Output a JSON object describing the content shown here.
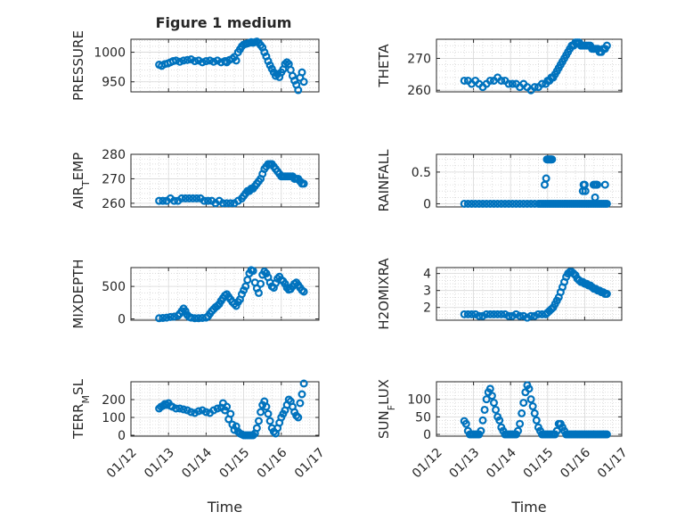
{
  "chart_data": {
    "type": "scatter",
    "title": "Figure 1 medium",
    "marker_color": "#0072BD",
    "marker": "circle",
    "xlabel": "Time",
    "x_domain": [
      "01/12",
      "01/17"
    ],
    "xticks": [
      "01/12",
      "01/13",
      "01/14",
      "01/15",
      "01/16",
      "01/17"
    ],
    "subplots": [
      {
        "name": "pressure",
        "ylabel": "PRESSURE",
        "ylabel_parts": [
          {
            "t": "PRESSURE"
          }
        ],
        "ylim": [
          933,
          1022
        ],
        "yticks": [
          950,
          1000
        ],
        "x": [
          12.75,
          12.82,
          12.9,
          12.98,
          13.05,
          13.12,
          13.2,
          13.3,
          13.4,
          13.5,
          13.6,
          13.7,
          13.8,
          13.9,
          14.0,
          14.1,
          14.2,
          14.3,
          14.4,
          14.5,
          14.55,
          14.62,
          14.7,
          14.75,
          14.8,
          14.85,
          14.9,
          14.95,
          15.0,
          15.05,
          15.1,
          15.15,
          15.2,
          15.25,
          15.3,
          15.35,
          15.4,
          15.45,
          15.5,
          15.55,
          15.6,
          15.65,
          15.7,
          15.75,
          15.8,
          15.85,
          15.9,
          15.95,
          16.0,
          16.05,
          16.1,
          16.15,
          16.2,
          16.25,
          16.3,
          16.35,
          16.4,
          16.45,
          16.5,
          16.55,
          16.6
        ],
        "y": [
          979,
          977,
          980,
          981,
          983,
          985,
          986,
          984,
          986,
          987,
          988,
          985,
          986,
          983,
          985,
          986,
          984,
          986,
          983,
          985,
          983,
          987,
          989,
          992,
          986,
          1000,
          1005,
          1010,
          1013,
          1014,
          1015,
          1016,
          1017,
          1016,
          1017,
          1018,
          1016,
          1012,
          1008,
          1000,
          993,
          985,
          978,
          972,
          966,
          960,
          963,
          958,
          966,
          971,
          980,
          983,
          980,
          970,
          960,
          952,
          945,
          936,
          957,
          966,
          950
        ]
      },
      {
        "name": "theta",
        "ylabel": "THETA",
        "ylabel_parts": [
          {
            "t": "THETA"
          }
        ],
        "ylim": [
          259.5,
          276
        ],
        "yticks": [
          260,
          270
        ],
        "x": [
          12.75,
          12.85,
          12.95,
          13.05,
          13.15,
          13.25,
          13.35,
          13.45,
          13.55,
          13.65,
          13.75,
          13.85,
          13.95,
          14.05,
          14.15,
          14.25,
          14.35,
          14.45,
          14.55,
          14.65,
          14.75,
          14.85,
          14.95,
          15.0,
          15.05,
          15.1,
          15.15,
          15.2,
          15.25,
          15.3,
          15.35,
          15.4,
          15.45,
          15.5,
          15.55,
          15.6,
          15.65,
          15.7,
          15.75,
          15.8,
          15.85,
          15.9,
          15.95,
          16.0,
          16.05,
          16.1,
          16.15,
          16.2,
          16.25,
          16.3,
          16.35,
          16.4,
          16.45,
          16.5,
          16.55,
          16.6
        ],
        "y": [
          263,
          263,
          262,
          263,
          262,
          261,
          262,
          263,
          263,
          264,
          263,
          263,
          262,
          262,
          262,
          261,
          262,
          261,
          260,
          261,
          261,
          262,
          262,
          263,
          263,
          264,
          264,
          265,
          266,
          267,
          268,
          269,
          270,
          271,
          272,
          273,
          274,
          274,
          275,
          275,
          275,
          274,
          274,
          274,
          274,
          274,
          274,
          273,
          273,
          273,
          273,
          272,
          272,
          273,
          273,
          274
        ]
      },
      {
        "name": "air_temp",
        "ylabel": "AIR_TEMP",
        "ylabel_parts": [
          {
            "t": "AIR"
          },
          {
            "t": "T",
            "sub": true
          },
          {
            "t": "EMP"
          }
        ],
        "ylim": [
          258.5,
          280
        ],
        "yticks": [
          260,
          270,
          280
        ],
        "x": [
          12.75,
          12.85,
          12.95,
          13.05,
          13.15,
          13.25,
          13.35,
          13.45,
          13.55,
          13.65,
          13.75,
          13.85,
          13.95,
          14.05,
          14.15,
          14.25,
          14.35,
          14.45,
          14.55,
          14.65,
          14.75,
          14.85,
          14.95,
          15.0,
          15.05,
          15.1,
          15.15,
          15.2,
          15.25,
          15.3,
          15.35,
          15.4,
          15.45,
          15.5,
          15.55,
          15.6,
          15.65,
          15.7,
          15.75,
          15.8,
          15.85,
          15.9,
          15.95,
          16.0,
          16.05,
          16.1,
          16.15,
          16.2,
          16.25,
          16.3,
          16.35,
          16.4,
          16.45,
          16.5,
          16.55,
          16.6
        ],
        "y": [
          261,
          261,
          261,
          262,
          261,
          261,
          262,
          262,
          262,
          262,
          262,
          262,
          261,
          261,
          261,
          260,
          261,
          260,
          260,
          260,
          260,
          261,
          262,
          263,
          264,
          265,
          265,
          266,
          266,
          267,
          268,
          269,
          270,
          272,
          274,
          275,
          276,
          276,
          276,
          275,
          274,
          273,
          272,
          271,
          271,
          271,
          271,
          271,
          271,
          271,
          270,
          270,
          270,
          269,
          268,
          268
        ]
      },
      {
        "name": "rainfall",
        "ylabel": "RAINFALL",
        "ylabel_parts": [
          {
            "t": "RAINFALL"
          }
        ],
        "ylim": [
          -0.05,
          0.78
        ],
        "yticks": [
          0,
          0.5
        ],
        "x": [
          12.75,
          12.85,
          12.95,
          13.05,
          13.15,
          13.25,
          13.35,
          13.45,
          13.55,
          13.65,
          13.75,
          13.85,
          13.95,
          14.05,
          14.15,
          14.25,
          14.35,
          14.45,
          14.55,
          14.65,
          14.75,
          14.8,
          14.85,
          14.9,
          14.95,
          15.0,
          15.05,
          15.1,
          15.15,
          15.2,
          15.25,
          15.3,
          15.35,
          15.4,
          15.45,
          15.5,
          15.55,
          15.6,
          15.65,
          15.7,
          15.75,
          15.8,
          15.85,
          15.9,
          15.95,
          16.0,
          16.05,
          16.1,
          16.15,
          16.2,
          16.25,
          16.3,
          16.35,
          16.4,
          16.45,
          16.5,
          16.55,
          16.6,
          14.92,
          14.96,
          14.98,
          15.0,
          15.02,
          15.04,
          15.06,
          15.08,
          15.1,
          15.12,
          15.95,
          15.97,
          16.0,
          16.02,
          16.24,
          16.26,
          16.28,
          16.3,
          16.32,
          16.34,
          16.55
        ],
        "y": [
          0,
          0,
          0,
          0,
          0,
          0,
          0,
          0,
          0,
          0,
          0,
          0,
          0,
          0,
          0,
          0,
          0,
          0,
          0,
          0,
          0,
          0,
          0,
          0,
          0,
          0,
          0,
          0,
          0,
          0,
          0,
          0,
          0,
          0,
          0,
          0,
          0,
          0,
          0,
          0,
          0,
          0,
          0,
          0,
          0,
          0,
          0,
          0,
          0,
          0,
          0,
          0,
          0,
          0,
          0,
          0,
          0,
          0,
          0.3,
          0.4,
          0.7,
          0.7,
          0.7,
          0.7,
          0.7,
          0.7,
          0.7,
          0.7,
          0.2,
          0.3,
          0.3,
          0.2,
          0.3,
          0.3,
          0.1,
          0.3,
          0.3,
          0.3,
          0.3
        ]
      },
      {
        "name": "mixdepth",
        "ylabel": "MIXDEPTH",
        "ylabel_parts": [
          {
            "t": "MIXDEPTH"
          }
        ],
        "ylim": [
          -20,
          790
        ],
        "yticks": [
          0,
          500
        ],
        "x": [
          12.75,
          12.85,
          12.95,
          13.05,
          13.15,
          13.25,
          13.3,
          13.35,
          13.4,
          13.45,
          13.5,
          13.55,
          13.6,
          13.7,
          13.8,
          13.9,
          14.0,
          14.05,
          14.1,
          14.15,
          14.2,
          14.25,
          14.3,
          14.35,
          14.4,
          14.45,
          14.5,
          14.55,
          14.6,
          14.65,
          14.7,
          14.75,
          14.8,
          14.85,
          14.9,
          14.95,
          15.0,
          15.05,
          15.1,
          15.15,
          15.2,
          15.25,
          15.3,
          15.35,
          15.4,
          15.45,
          15.5,
          15.55,
          15.6,
          15.65,
          15.7,
          15.75,
          15.8,
          15.85,
          15.9,
          15.95,
          16.0,
          16.05,
          16.1,
          16.15,
          16.2,
          16.25,
          16.3,
          16.35,
          16.4,
          16.45,
          16.5,
          16.55,
          16.6
        ],
        "y": [
          10,
          15,
          20,
          30,
          35,
          50,
          80,
          120,
          160,
          120,
          60,
          30,
          20,
          10,
          10,
          15,
          20,
          40,
          80,
          120,
          150,
          180,
          200,
          230,
          280,
          320,
          360,
          380,
          340,
          300,
          260,
          230,
          200,
          260,
          300,
          380,
          440,
          500,
          600,
          700,
          750,
          740,
          560,
          470,
          400,
          540,
          680,
          730,
          700,
          640,
          560,
          500,
          480,
          550,
          620,
          650,
          600,
          580,
          540,
          480,
          450,
          460,
          500,
          540,
          560,
          520,
          480,
          440,
          420
        ]
      },
      {
        "name": "h2omixra",
        "ylabel": "H2OMIXRA",
        "ylabel_parts": [
          {
            "t": "H2OMIXRA"
          }
        ],
        "ylim": [
          1.25,
          4.35
        ],
        "yticks": [
          2,
          3,
          4
        ],
        "x": [
          12.75,
          12.85,
          12.95,
          13.05,
          13.15,
          13.25,
          13.35,
          13.45,
          13.55,
          13.65,
          13.75,
          13.85,
          13.95,
          14.05,
          14.15,
          14.25,
          14.35,
          14.45,
          14.55,
          14.65,
          14.75,
          14.85,
          14.95,
          15.0,
          15.05,
          15.1,
          15.15,
          15.2,
          15.25,
          15.3,
          15.35,
          15.4,
          15.45,
          15.5,
          15.55,
          15.6,
          15.65,
          15.7,
          15.75,
          15.8,
          15.85,
          15.9,
          15.95,
          16.0,
          16.05,
          16.1,
          16.15,
          16.2,
          16.25,
          16.3,
          16.35,
          16.4,
          16.45,
          16.5,
          16.55,
          16.6
        ],
        "y": [
          1.6,
          1.6,
          1.6,
          1.6,
          1.5,
          1.5,
          1.6,
          1.6,
          1.6,
          1.6,
          1.6,
          1.6,
          1.5,
          1.5,
          1.6,
          1.5,
          1.5,
          1.4,
          1.5,
          1.5,
          1.6,
          1.6,
          1.6,
          1.7,
          1.8,
          1.9,
          2.0,
          2.2,
          2.4,
          2.6,
          2.9,
          3.2,
          3.5,
          3.8,
          4.0,
          4.1,
          4.1,
          4.0,
          3.9,
          3.7,
          3.6,
          3.5,
          3.5,
          3.4,
          3.4,
          3.3,
          3.3,
          3.2,
          3.1,
          3.1,
          3.0,
          3.0,
          2.9,
          2.9,
          2.8,
          2.8
        ]
      },
      {
        "name": "terr_msl",
        "ylabel": "TERR_MSL",
        "ylabel_parts": [
          {
            "t": "TERR"
          },
          {
            "t": "M",
            "sub": true
          },
          {
            "t": "SL"
          }
        ],
        "ylim": [
          -5,
          300
        ],
        "yticks": [
          0,
          100,
          200
        ],
        "x": [
          12.75,
          12.8,
          12.85,
          12.9,
          12.95,
          13.0,
          13.05,
          13.1,
          13.2,
          13.3,
          13.4,
          13.5,
          13.6,
          13.7,
          13.8,
          13.9,
          14.0,
          14.1,
          14.2,
          14.3,
          14.4,
          14.45,
          14.5,
          14.55,
          14.6,
          14.65,
          14.7,
          14.75,
          14.8,
          14.85,
          14.9,
          14.95,
          15.0,
          15.05,
          15.1,
          15.15,
          15.2,
          15.25,
          15.3,
          15.35,
          15.4,
          15.45,
          15.5,
          15.55,
          15.6,
          15.65,
          15.7,
          15.75,
          15.8,
          15.85,
          15.9,
          15.95,
          16.0,
          16.05,
          16.1,
          16.15,
          16.2,
          16.25,
          16.3,
          16.35,
          16.4,
          16.45,
          16.5,
          16.55,
          16.6
        ],
        "y": [
          150,
          160,
          165,
          175,
          170,
          180,
          165,
          160,
          150,
          150,
          145,
          140,
          130,
          125,
          135,
          140,
          130,
          125,
          140,
          150,
          155,
          180,
          140,
          160,
          90,
          120,
          60,
          30,
          50,
          20,
          10,
          5,
          0,
          0,
          0,
          0,
          0,
          0,
          10,
          40,
          80,
          130,
          170,
          190,
          160,
          120,
          80,
          40,
          20,
          10,
          40,
          70,
          100,
          120,
          140,
          170,
          200,
          190,
          160,
          130,
          110,
          100,
          180,
          230,
          290
        ]
      },
      {
        "name": "sun_flux",
        "ylabel": "SUN_FLUX",
        "ylabel_parts": [
          {
            "t": "SUN"
          },
          {
            "t": "F",
            "sub": true
          },
          {
            "t": "LUX"
          }
        ],
        "ylim": [
          -5,
          150
        ],
        "yticks": [
          0,
          50,
          100
        ],
        "x": [
          12.75,
          12.8,
          12.85,
          12.9,
          12.95,
          13.0,
          13.05,
          13.1,
          13.15,
          13.2,
          13.25,
          13.3,
          13.35,
          13.4,
          13.45,
          13.5,
          13.55,
          13.6,
          13.65,
          13.7,
          13.75,
          13.8,
          13.85,
          13.9,
          13.95,
          14.0,
          14.05,
          14.1,
          14.15,
          14.2,
          14.25,
          14.3,
          14.35,
          14.4,
          14.45,
          14.5,
          14.55,
          14.6,
          14.65,
          14.7,
          14.75,
          14.8,
          14.85,
          14.9,
          14.95,
          15.0,
          15.05,
          15.1,
          15.15,
          15.2,
          15.25,
          15.3,
          15.35,
          15.4,
          15.45,
          15.5,
          15.55,
          15.6,
          15.65,
          15.7,
          15.75,
          15.8,
          15.85,
          15.9,
          15.95,
          16.0,
          16.05,
          16.1,
          16.15,
          16.2,
          16.25,
          16.3,
          16.35,
          16.4,
          16.45,
          16.5,
          16.55,
          16.6
        ],
        "y": [
          38,
          30,
          10,
          0,
          0,
          0,
          0,
          0,
          0,
          10,
          40,
          70,
          100,
          120,
          130,
          110,
          90,
          70,
          50,
          40,
          20,
          10,
          0,
          0,
          0,
          0,
          0,
          0,
          0,
          10,
          30,
          60,
          90,
          120,
          140,
          130,
          100,
          80,
          60,
          40,
          20,
          10,
          0,
          0,
          0,
          0,
          0,
          0,
          0,
          0,
          10,
          30,
          30,
          20,
          10,
          0,
          0,
          0,
          0,
          0,
          0,
          0,
          0,
          0,
          0,
          0,
          0,
          0,
          0,
          0,
          0,
          0,
          0,
          0,
          0,
          0,
          0,
          0
        ]
      }
    ]
  }
}
